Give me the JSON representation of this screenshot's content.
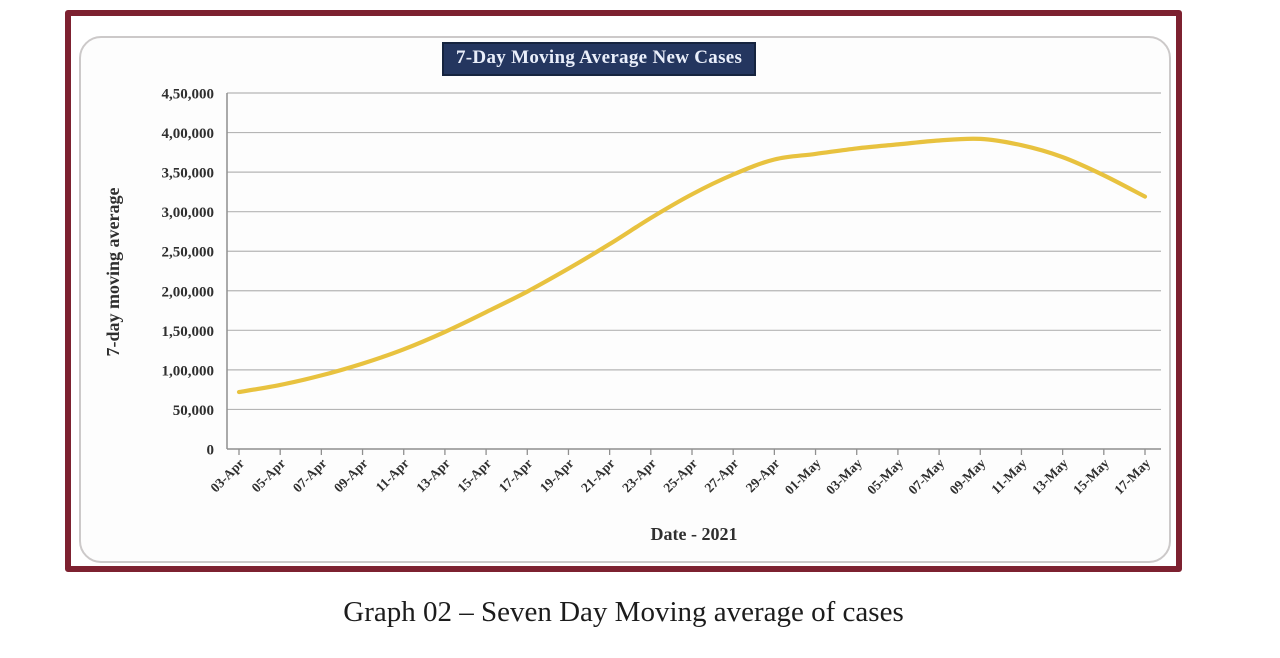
{
  "page": {
    "caption": "Graph 02 – Seven Day Moving average of cases"
  },
  "colors": {
    "frame_border": "#7d2130",
    "badge_background": "#24365f",
    "badge_text": "#e9eefa"
  },
  "chart_data": {
    "type": "line",
    "title": "7-Day Moving Average New Cases",
    "xlabel": "Date - 2021",
    "ylabel": "7-day moving average",
    "categories": [
      "03-Apr",
      "05-Apr",
      "07-Apr",
      "09-Apr",
      "11-Apr",
      "13-Apr",
      "15-Apr",
      "17-Apr",
      "19-Apr",
      "21-Apr",
      "23-Apr",
      "25-Apr",
      "27-Apr",
      "29-Apr",
      "01-May",
      "03-May",
      "05-May",
      "07-May",
      "09-May",
      "11-May",
      "13-May",
      "15-May",
      "17-May"
    ],
    "values": [
      72000,
      81000,
      93000,
      108000,
      126000,
      148000,
      173000,
      199000,
      228000,
      259000,
      292000,
      322000,
      347000,
      366000,
      373000,
      380000,
      385000,
      390000,
      392000,
      384000,
      369000,
      346000,
      319000
    ],
    "ylim": [
      0,
      450000
    ],
    "y_ticks": [
      {
        "value": 0,
        "label": "0"
      },
      {
        "value": 50000,
        "label": "50,000"
      },
      {
        "value": 100000,
        "label": "1,00,000"
      },
      {
        "value": 150000,
        "label": "1,50,000"
      },
      {
        "value": 200000,
        "label": "2,00,000"
      },
      {
        "value": 250000,
        "label": "2,50,000"
      },
      {
        "value": 300000,
        "label": "3,00,000"
      },
      {
        "value": 350000,
        "label": "3,50,000"
      },
      {
        "value": 400000,
        "label": "4,00,000"
      },
      {
        "value": 450000,
        "label": "4,50,000"
      }
    ],
    "grid": true,
    "legend": false,
    "smooth": true,
    "colors": {
      "line": "#e8c23f",
      "grid": "#b5b5b5",
      "axis": "#8f8f8f"
    }
  }
}
